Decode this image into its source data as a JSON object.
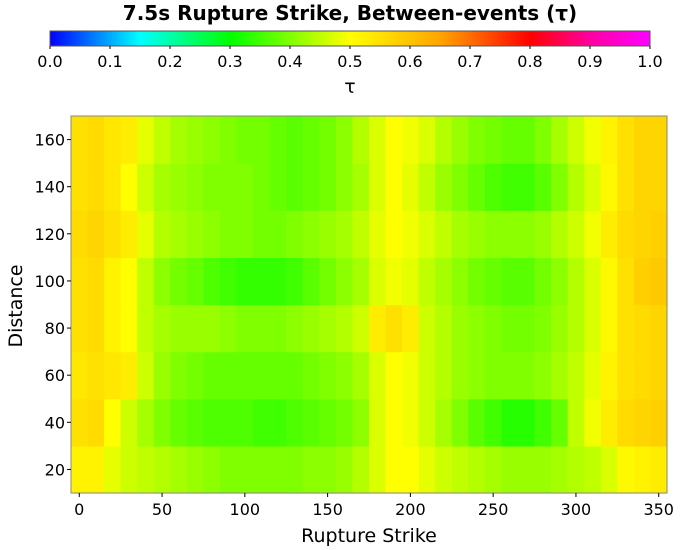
{
  "chart_data": {
    "type": "heatmap",
    "title": "7.5s Rupture Strike, Between-events (τ)",
    "xlabel": "Rupture Strike",
    "ylabel": "Distance",
    "colorbar_label": "τ",
    "xlim": [
      -5,
      355
    ],
    "ylim": [
      10,
      170
    ],
    "x_ticks": [
      0,
      50,
      100,
      150,
      200,
      250,
      300,
      350
    ],
    "y_ticks": [
      20,
      40,
      60,
      80,
      100,
      120,
      140,
      160
    ],
    "colorbar_range": [
      0,
      1
    ],
    "colorbar_ticks": [
      "0.0",
      "0.1",
      "0.2",
      "0.3",
      "0.4",
      "0.5",
      "0.6",
      "0.7",
      "0.8",
      "0.9",
      "1.0"
    ],
    "colormap_stops": [
      {
        "value": 0.0,
        "color": "#0000ff"
      },
      {
        "value": 0.15,
        "color": "#00ffff"
      },
      {
        "value": 0.3,
        "color": "#00ff00"
      },
      {
        "value": 0.5,
        "color": "#ffff00"
      },
      {
        "value": 0.65,
        "color": "#ffa500"
      },
      {
        "value": 0.8,
        "color": "#ff0000"
      },
      {
        "value": 0.9,
        "color": "#ff00a0"
      },
      {
        "value": 1.0,
        "color": "#ff00ff"
      }
    ],
    "x_centers": [
      0,
      10,
      20,
      30,
      40,
      50,
      60,
      70,
      80,
      90,
      100,
      110,
      120,
      130,
      140,
      150,
      160,
      170,
      180,
      190,
      200,
      210,
      220,
      230,
      240,
      250,
      260,
      270,
      280,
      290,
      300,
      310,
      320,
      330,
      340,
      350
    ],
    "y_centers": [
      20,
      40,
      60,
      80,
      100,
      120,
      140,
      160
    ],
    "z": [
      [
        0.52,
        0.52,
        0.48,
        0.46,
        0.45,
        0.44,
        0.43,
        0.42,
        0.41,
        0.4,
        0.4,
        0.4,
        0.4,
        0.4,
        0.41,
        0.41,
        0.42,
        0.44,
        0.47,
        0.5,
        0.5,
        0.48,
        0.46,
        0.45,
        0.44,
        0.43,
        0.42,
        0.42,
        0.42,
        0.43,
        0.44,
        0.45,
        0.47,
        0.51,
        0.52,
        0.53
      ],
      [
        0.55,
        0.56,
        0.5,
        0.46,
        0.43,
        0.4,
        0.38,
        0.37,
        0.36,
        0.36,
        0.36,
        0.35,
        0.35,
        0.36,
        0.37,
        0.38,
        0.39,
        0.41,
        0.47,
        0.5,
        0.49,
        0.46,
        0.43,
        0.4,
        0.37,
        0.35,
        0.33,
        0.33,
        0.35,
        0.38,
        0.45,
        0.49,
        0.53,
        0.56,
        0.57,
        0.58
      ],
      [
        0.54,
        0.55,
        0.54,
        0.53,
        0.46,
        0.42,
        0.4,
        0.39,
        0.38,
        0.38,
        0.38,
        0.38,
        0.38,
        0.38,
        0.39,
        0.4,
        0.41,
        0.43,
        0.47,
        0.5,
        0.49,
        0.46,
        0.44,
        0.42,
        0.41,
        0.4,
        0.4,
        0.4,
        0.41,
        0.43,
        0.45,
        0.48,
        0.52,
        0.55,
        0.56,
        0.57
      ],
      [
        0.55,
        0.56,
        0.52,
        0.5,
        0.45,
        0.43,
        0.42,
        0.42,
        0.42,
        0.41,
        0.4,
        0.4,
        0.4,
        0.41,
        0.42,
        0.43,
        0.44,
        0.46,
        0.53,
        0.55,
        0.53,
        0.46,
        0.44,
        0.42,
        0.41,
        0.4,
        0.39,
        0.39,
        0.4,
        0.42,
        0.44,
        0.47,
        0.51,
        0.55,
        0.56,
        0.57
      ],
      [
        0.55,
        0.56,
        0.52,
        0.5,
        0.45,
        0.41,
        0.39,
        0.38,
        0.36,
        0.35,
        0.34,
        0.34,
        0.34,
        0.35,
        0.37,
        0.39,
        0.41,
        0.43,
        0.47,
        0.49,
        0.48,
        0.45,
        0.43,
        0.41,
        0.39,
        0.38,
        0.37,
        0.37,
        0.39,
        0.41,
        0.44,
        0.47,
        0.51,
        0.55,
        0.58,
        0.59
      ],
      [
        0.56,
        0.57,
        0.55,
        0.53,
        0.48,
        0.44,
        0.43,
        0.42,
        0.41,
        0.4,
        0.4,
        0.39,
        0.39,
        0.4,
        0.41,
        0.42,
        0.43,
        0.45,
        0.48,
        0.5,
        0.49,
        0.47,
        0.45,
        0.43,
        0.42,
        0.41,
        0.41,
        0.41,
        0.42,
        0.44,
        0.46,
        0.49,
        0.53,
        0.56,
        0.57,
        0.58
      ],
      [
        0.55,
        0.56,
        0.54,
        0.5,
        0.46,
        0.43,
        0.42,
        0.41,
        0.4,
        0.4,
        0.4,
        0.39,
        0.38,
        0.37,
        0.38,
        0.39,
        0.41,
        0.43,
        0.47,
        0.5,
        0.48,
        0.45,
        0.42,
        0.4,
        0.38,
        0.36,
        0.35,
        0.35,
        0.37,
        0.4,
        0.44,
        0.47,
        0.51,
        0.55,
        0.57,
        0.57
      ],
      [
        0.55,
        0.56,
        0.54,
        0.53,
        0.48,
        0.45,
        0.43,
        0.42,
        0.41,
        0.4,
        0.39,
        0.39,
        0.38,
        0.37,
        0.38,
        0.39,
        0.41,
        0.44,
        0.47,
        0.5,
        0.49,
        0.47,
        0.44,
        0.42,
        0.4,
        0.39,
        0.38,
        0.38,
        0.4,
        0.43,
        0.46,
        0.49,
        0.52,
        0.55,
        0.57,
        0.57
      ]
    ]
  }
}
